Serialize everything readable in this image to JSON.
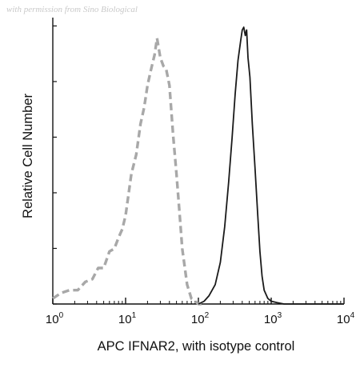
{
  "watermark": "with permission from Sino Biological",
  "chart_data": {
    "type": "line",
    "xlabel": "APC IFNAR2, with isotype control",
    "ylabel": "Relative Cell Number",
    "x_scale": "log",
    "xlim": [
      1,
      10000
    ],
    "ylim": [
      0,
      100
    ],
    "x_ticks": [
      {
        "value": 1,
        "base": "10",
        "exp": "0"
      },
      {
        "value": 10,
        "base": "10",
        "exp": "1"
      },
      {
        "value": 100,
        "base": "10",
        "exp": "2"
      },
      {
        "value": 1000,
        "base": "10",
        "exp": "3"
      },
      {
        "value": 10000,
        "base": "10",
        "exp": "4"
      }
    ],
    "grid": false,
    "series": [
      {
        "style": "dashed",
        "color": "#a8a8a8",
        "x": [
          1,
          1.3,
          1.7,
          2.2,
          2.8,
          3.5,
          4.2,
          5,
          6,
          7,
          8,
          9,
          10,
          12,
          14,
          16,
          18,
          20,
          22,
          25,
          27,
          30,
          33,
          36,
          40,
          45,
          50,
          55,
          60,
          70,
          80,
          90,
          100,
          120
        ],
        "y": [
          2,
          4,
          5,
          5,
          8,
          9,
          13,
          13,
          19,
          20,
          24,
          27,
          32,
          47,
          54,
          65,
          71,
          79,
          84,
          90,
          96,
          89,
          86,
          85,
          79,
          61,
          47,
          33,
          20,
          7,
          2,
          1,
          0,
          0
        ]
      },
      {
        "style": "solid",
        "color": "#1a1a1a",
        "x": [
          100,
          120,
          140,
          170,
          200,
          230,
          260,
          290,
          320,
          350,
          380,
          400,
          420,
          440,
          460,
          480,
          510,
          550,
          600,
          650,
          700,
          750,
          800,
          900,
          1000,
          1200,
          1500,
          2000,
          3000,
          5000,
          10000
        ],
        "y": [
          0,
          1,
          3,
          7,
          15,
          28,
          44,
          60,
          76,
          88,
          95,
          99,
          100,
          97,
          99,
          89,
          82,
          65,
          49,
          33,
          19,
          10,
          5,
          2,
          1,
          0.5,
          0,
          0,
          0,
          0,
          0
        ]
      }
    ]
  }
}
